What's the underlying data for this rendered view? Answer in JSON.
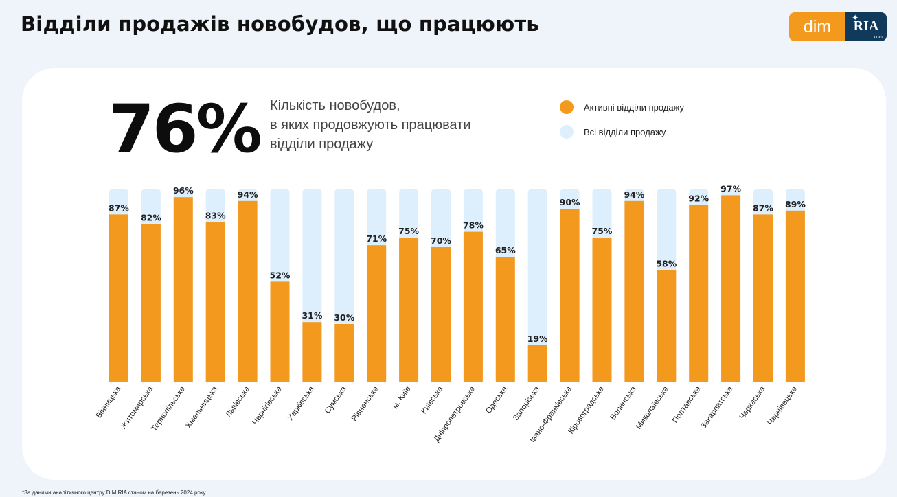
{
  "header": {
    "title": "Відділи продажів новобудов, що працюють"
  },
  "logo": {
    "dim": "dim",
    "ria": "RIA",
    "ria_sub": ".com"
  },
  "summary": {
    "big_percent": "76%",
    "description_line1": "Кількість новобудов,",
    "description_line2": "в яких продовжують працювати",
    "description_line3": "відділи продажу"
  },
  "colors": {
    "active": "#f39a1e",
    "all": "#ddeefc",
    "logo_orange": "#f39a1e",
    "logo_navy": "#0f3a5c"
  },
  "chart_data": {
    "type": "bar",
    "categories": [
      "Вінницька",
      "Житомирська",
      "Тернопільська",
      "Хмельницька",
      "Львівська",
      "Чернігівська",
      "Харківська",
      "Сумська",
      "Рівненська",
      "м. Київ",
      "Київська",
      "Дніпропетровська",
      "Одеська",
      "Запорізька",
      "Івано-Франківська",
      "Кіровоградська",
      "Волинська",
      "Миколаївська",
      "Полтавська",
      "Закарпатська",
      "Черкаська",
      "Чернівецька"
    ],
    "series": [
      {
        "name": "Активні відділи продажу",
        "values": [
          87,
          82,
          96,
          83,
          94,
          52,
          31,
          30,
          71,
          75,
          70,
          78,
          65,
          19,
          90,
          75,
          94,
          58,
          92,
          97,
          87,
          89
        ]
      },
      {
        "name": "Всі відділи продажу",
        "values": [
          100,
          100,
          100,
          100,
          100,
          100,
          100,
          100,
          100,
          100,
          100,
          100,
          100,
          100,
          100,
          100,
          100,
          100,
          100,
          100,
          100,
          100
        ]
      }
    ],
    "data_labels": [
      "87%",
      "82%",
      "96%",
      "83%",
      "94%",
      "52%",
      "31%",
      "30%",
      "71%",
      "75%",
      "70%",
      "78%",
      "65%",
      "19%",
      "90%",
      "75%",
      "94%",
      "58%",
      "92%",
      "97%",
      "87%",
      "89%"
    ],
    "ylim": [
      0,
      100
    ],
    "grid": false,
    "legend": "top-right"
  },
  "footnote": "*За даними аналітичного центру DIM.RIA станом на березень 2024 року"
}
